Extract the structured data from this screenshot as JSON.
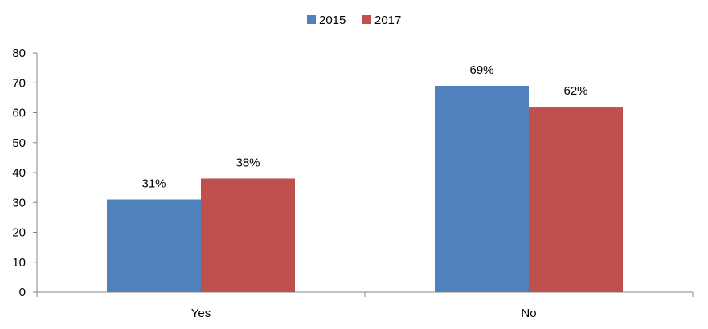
{
  "chart_data": {
    "type": "bar",
    "categories": [
      "Yes",
      "No"
    ],
    "series": [
      {
        "name": "2015",
        "values": [
          31,
          69
        ],
        "labels": [
          "31%",
          "69%"
        ],
        "color": "#4F81BD"
      },
      {
        "name": "2017",
        "values": [
          38,
          62
        ],
        "labels": [
          "38%",
          "62%"
        ],
        "color": "#C0504D"
      }
    ],
    "ylim": [
      0,
      80
    ],
    "yticks": [
      0,
      10,
      20,
      30,
      40,
      50,
      60,
      70,
      80
    ],
    "legend_position": "top-center",
    "grid": false,
    "axis_color": "#868686"
  }
}
